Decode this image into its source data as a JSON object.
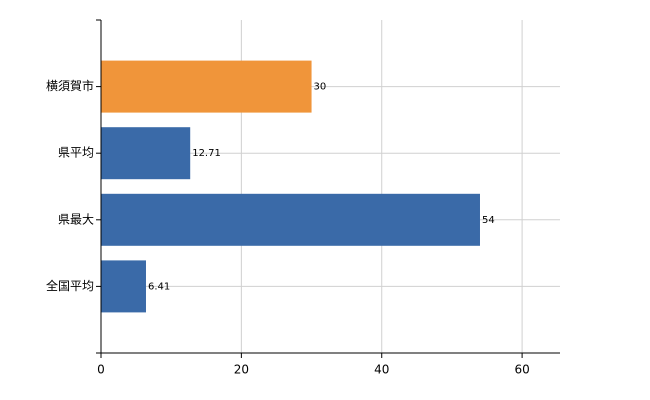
{
  "chart_data": {
    "type": "bar",
    "orientation": "horizontal",
    "categories": [
      "横須賀市",
      "県平均",
      "県最大",
      "全国平均"
    ],
    "values": [
      30,
      12.71,
      54,
      6.41
    ],
    "colors": [
      "#f0953a",
      "#3a6aa8",
      "#3a6aa8",
      "#3a6aa8"
    ],
    "xlim": [
      0,
      65.4
    ],
    "xticks": [
      0,
      20,
      40,
      60
    ],
    "grid": true
  }
}
